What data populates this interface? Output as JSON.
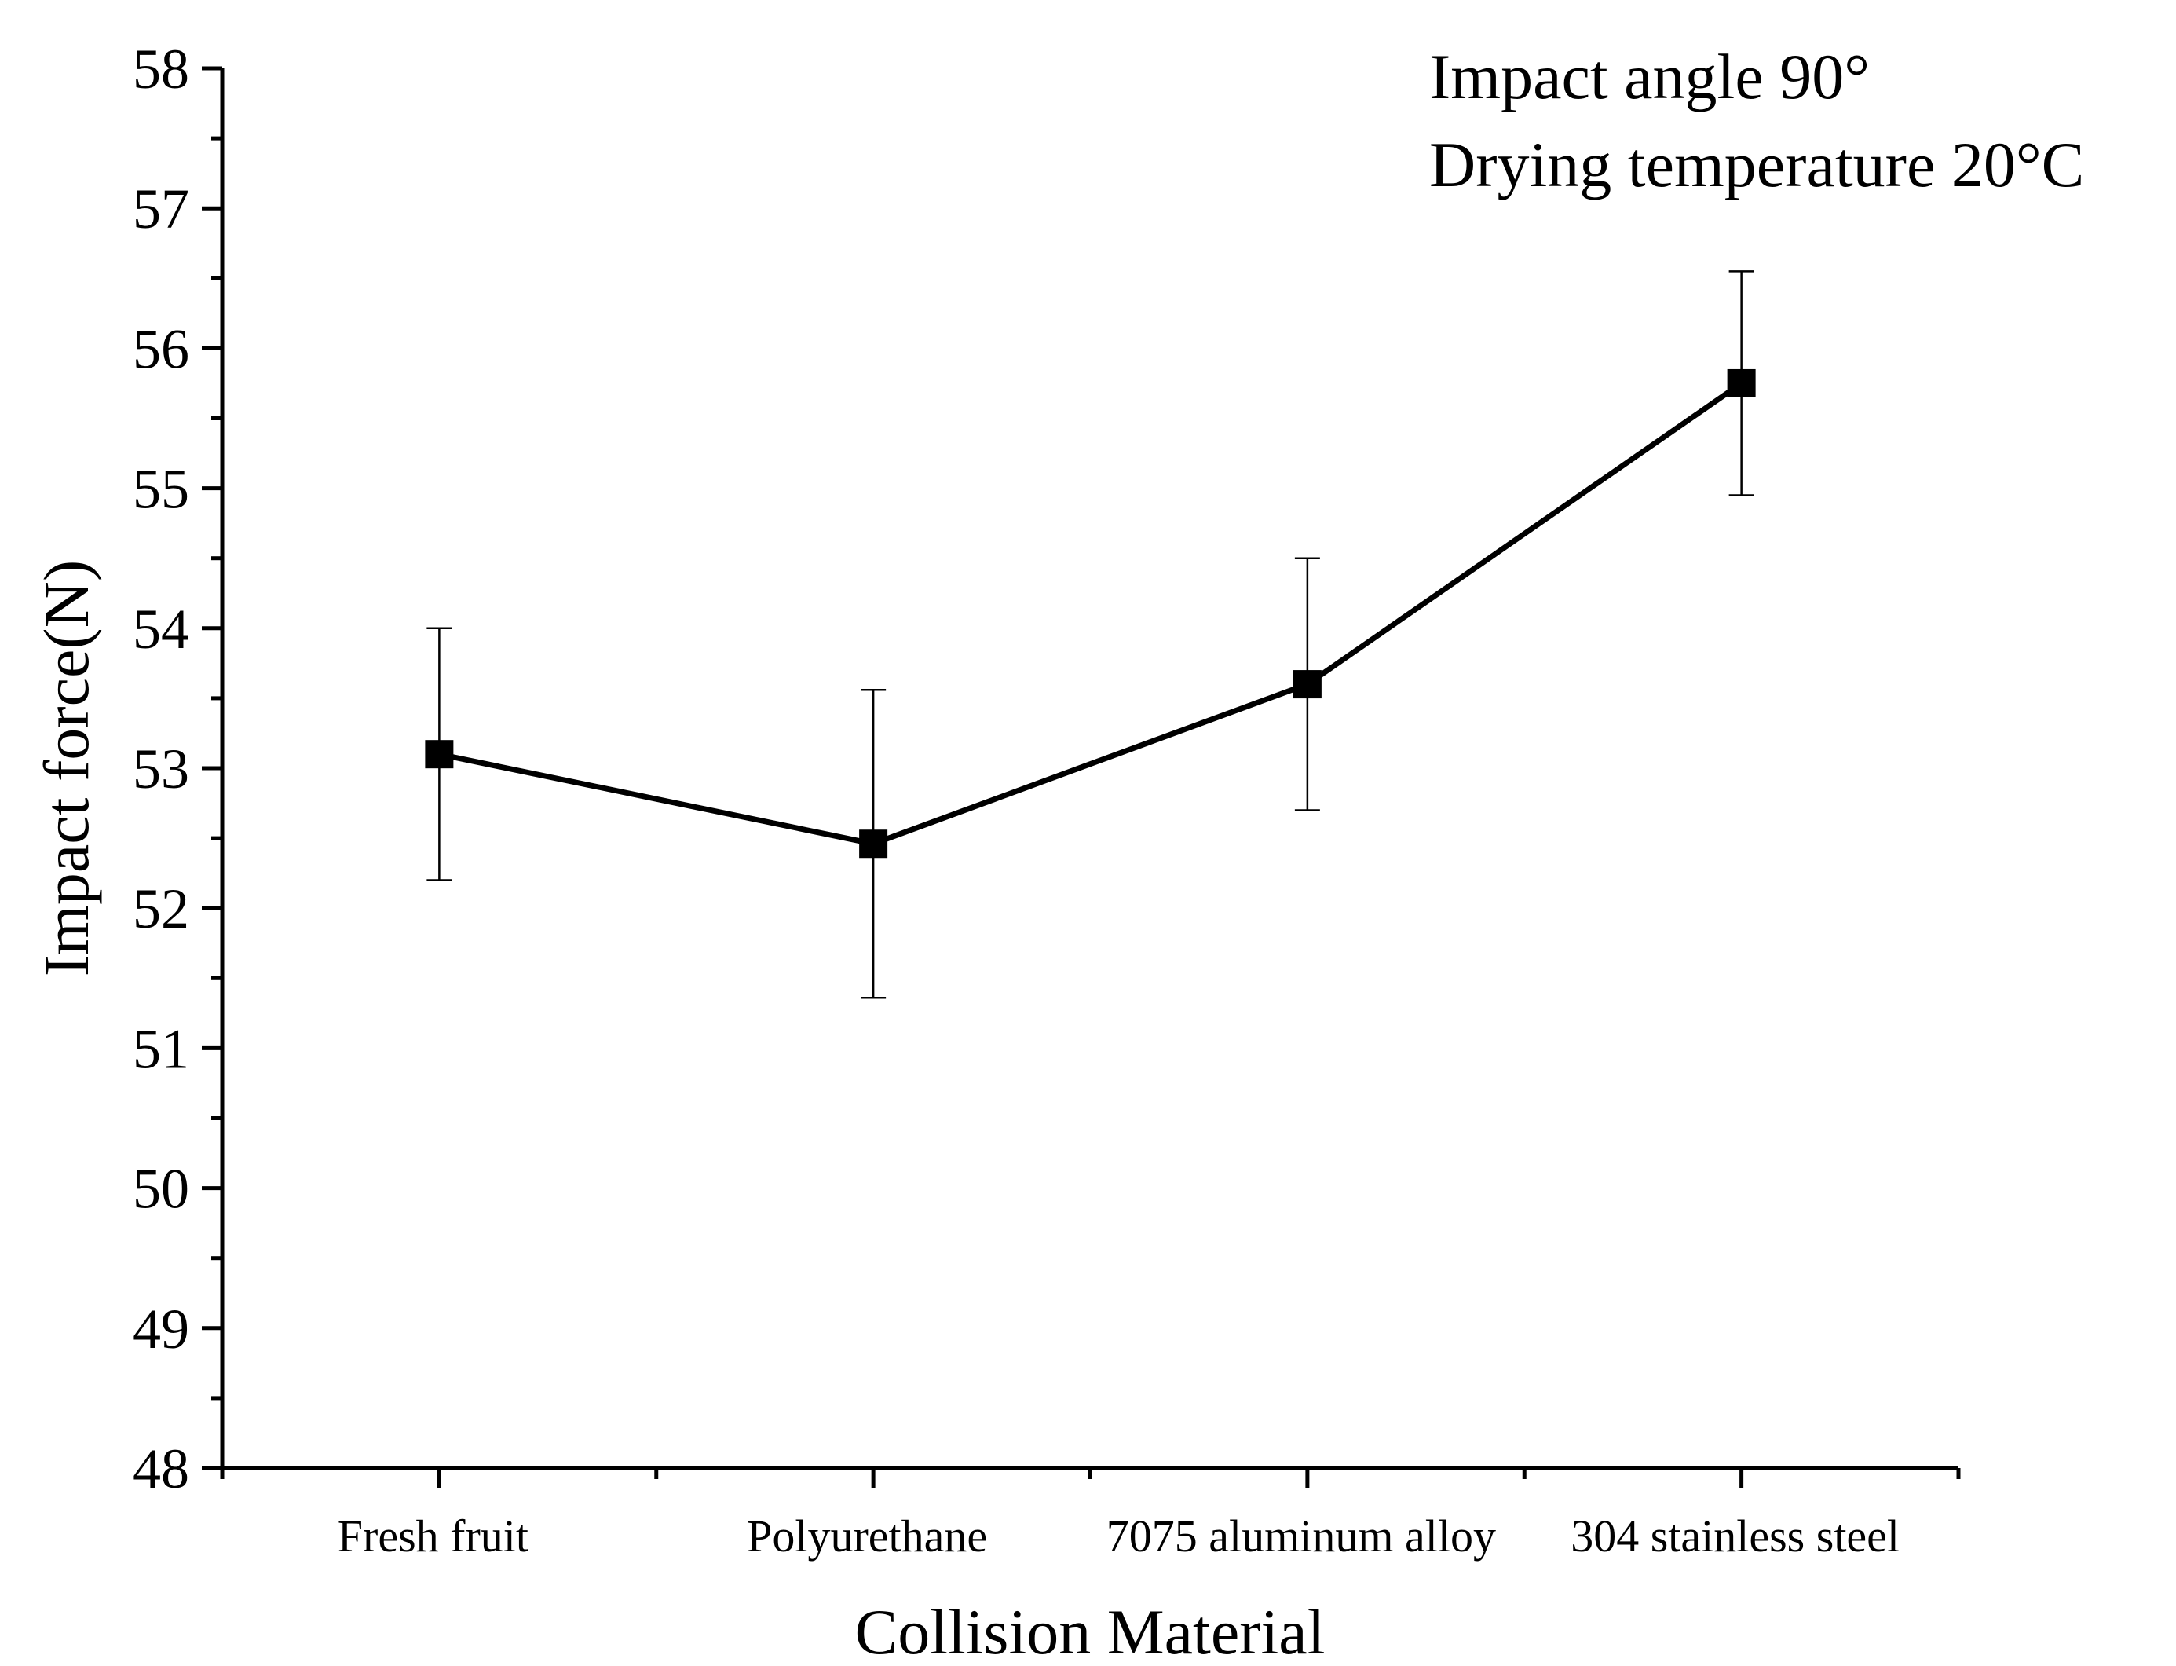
{
  "chart_data": {
    "type": "line",
    "title": "",
    "xlabel": "Collision Material",
    "ylabel": "Impact force(N)",
    "categories": [
      "Fresh fruit",
      "Polyurethane",
      "7075 aluminum alloy",
      "304 stainless steel"
    ],
    "series": [
      {
        "name": "Impact force",
        "values": [
          53.1,
          52.46,
          53.6,
          55.75
        ],
        "errors": [
          0.9,
          1.1,
          0.9,
          0.8
        ],
        "color": "#000000",
        "marker": "square"
      }
    ],
    "ylim": [
      48,
      58
    ],
    "yticks": [
      "48",
      "49",
      "50",
      "51",
      "52",
      "53",
      "54",
      "55",
      "56",
      "57",
      "58"
    ],
    "annotations": [
      "Impact angle 90°",
      "Drying temperature 20°C"
    ],
    "grid": false,
    "legend": "none"
  }
}
